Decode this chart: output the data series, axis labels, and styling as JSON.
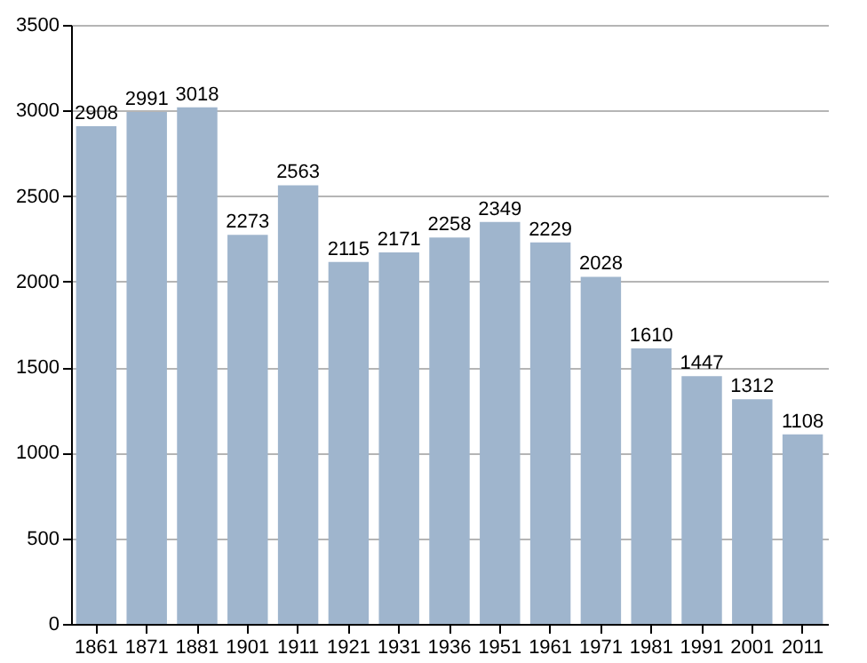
{
  "chart_data": {
    "type": "bar",
    "categories": [
      "1861",
      "1871",
      "1881",
      "1901",
      "1911",
      "1921",
      "1931",
      "1936",
      "1951",
      "1961",
      "1971",
      "1981",
      "1991",
      "2001",
      "2011"
    ],
    "values": [
      2908,
      2991,
      3018,
      2273,
      2563,
      2115,
      2171,
      2258,
      2349,
      2229,
      2028,
      1610,
      1447,
      1312,
      1108
    ],
    "color": "#9fb5cd",
    "ylim": [
      0,
      3500
    ],
    "yticks": [
      0,
      500,
      1000,
      1500,
      2000,
      2500,
      3000,
      3500
    ],
    "grid": true,
    "data_labels": true
  }
}
